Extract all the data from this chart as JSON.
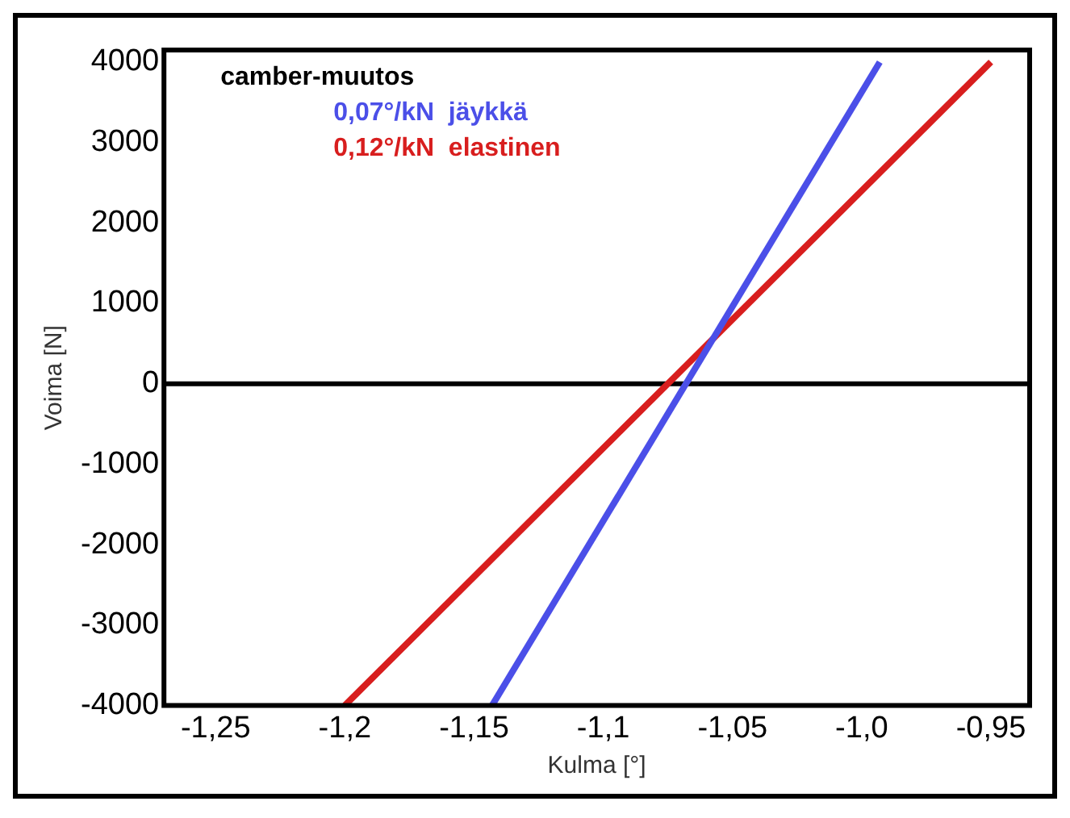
{
  "chart_data": {
    "type": "line",
    "xlabel": "Kulma [°]",
    "ylabel": "Voima [N]",
    "legend_title": "camber-muutos",
    "legend": "top left",
    "grid": false,
    "marker": "none",
    "line_style": "solid",
    "xlim": [
      -1.27,
      -0.935
    ],
    "xticks": [
      {
        "value": -1.25,
        "label": "-1,25"
      },
      {
        "value": -1.2,
        "label": "-1,2"
      },
      {
        "value": -1.15,
        "label": "-1,15"
      },
      {
        "value": -1.1,
        "label": "-1,1"
      },
      {
        "value": -1.05,
        "label": "-1,05"
      },
      {
        "value": -1.0,
        "label": "-1,0"
      },
      {
        "value": -0.95,
        "label": "-0,95"
      }
    ],
    "ylim": [
      -4000,
      4150
    ],
    "yticks": [
      -4000,
      -3000,
      -2000,
      -1000,
      0,
      1000,
      2000,
      3000,
      4000
    ],
    "ref_lines": [
      {
        "axis": "y",
        "value": 0,
        "color": "#000000"
      }
    ],
    "series": [
      {
        "name": "0,07°/kN  jäykkä",
        "color": "#4b4fe8",
        "x": [
          -1.143,
          -0.993
        ],
        "values": [
          -4000,
          4000
        ]
      },
      {
        "name": "0,12°/kN  elastinen",
        "color": "#d81e1e",
        "x": [
          -1.2,
          -0.95
        ],
        "values": [
          -4000,
          4000
        ]
      }
    ]
  }
}
